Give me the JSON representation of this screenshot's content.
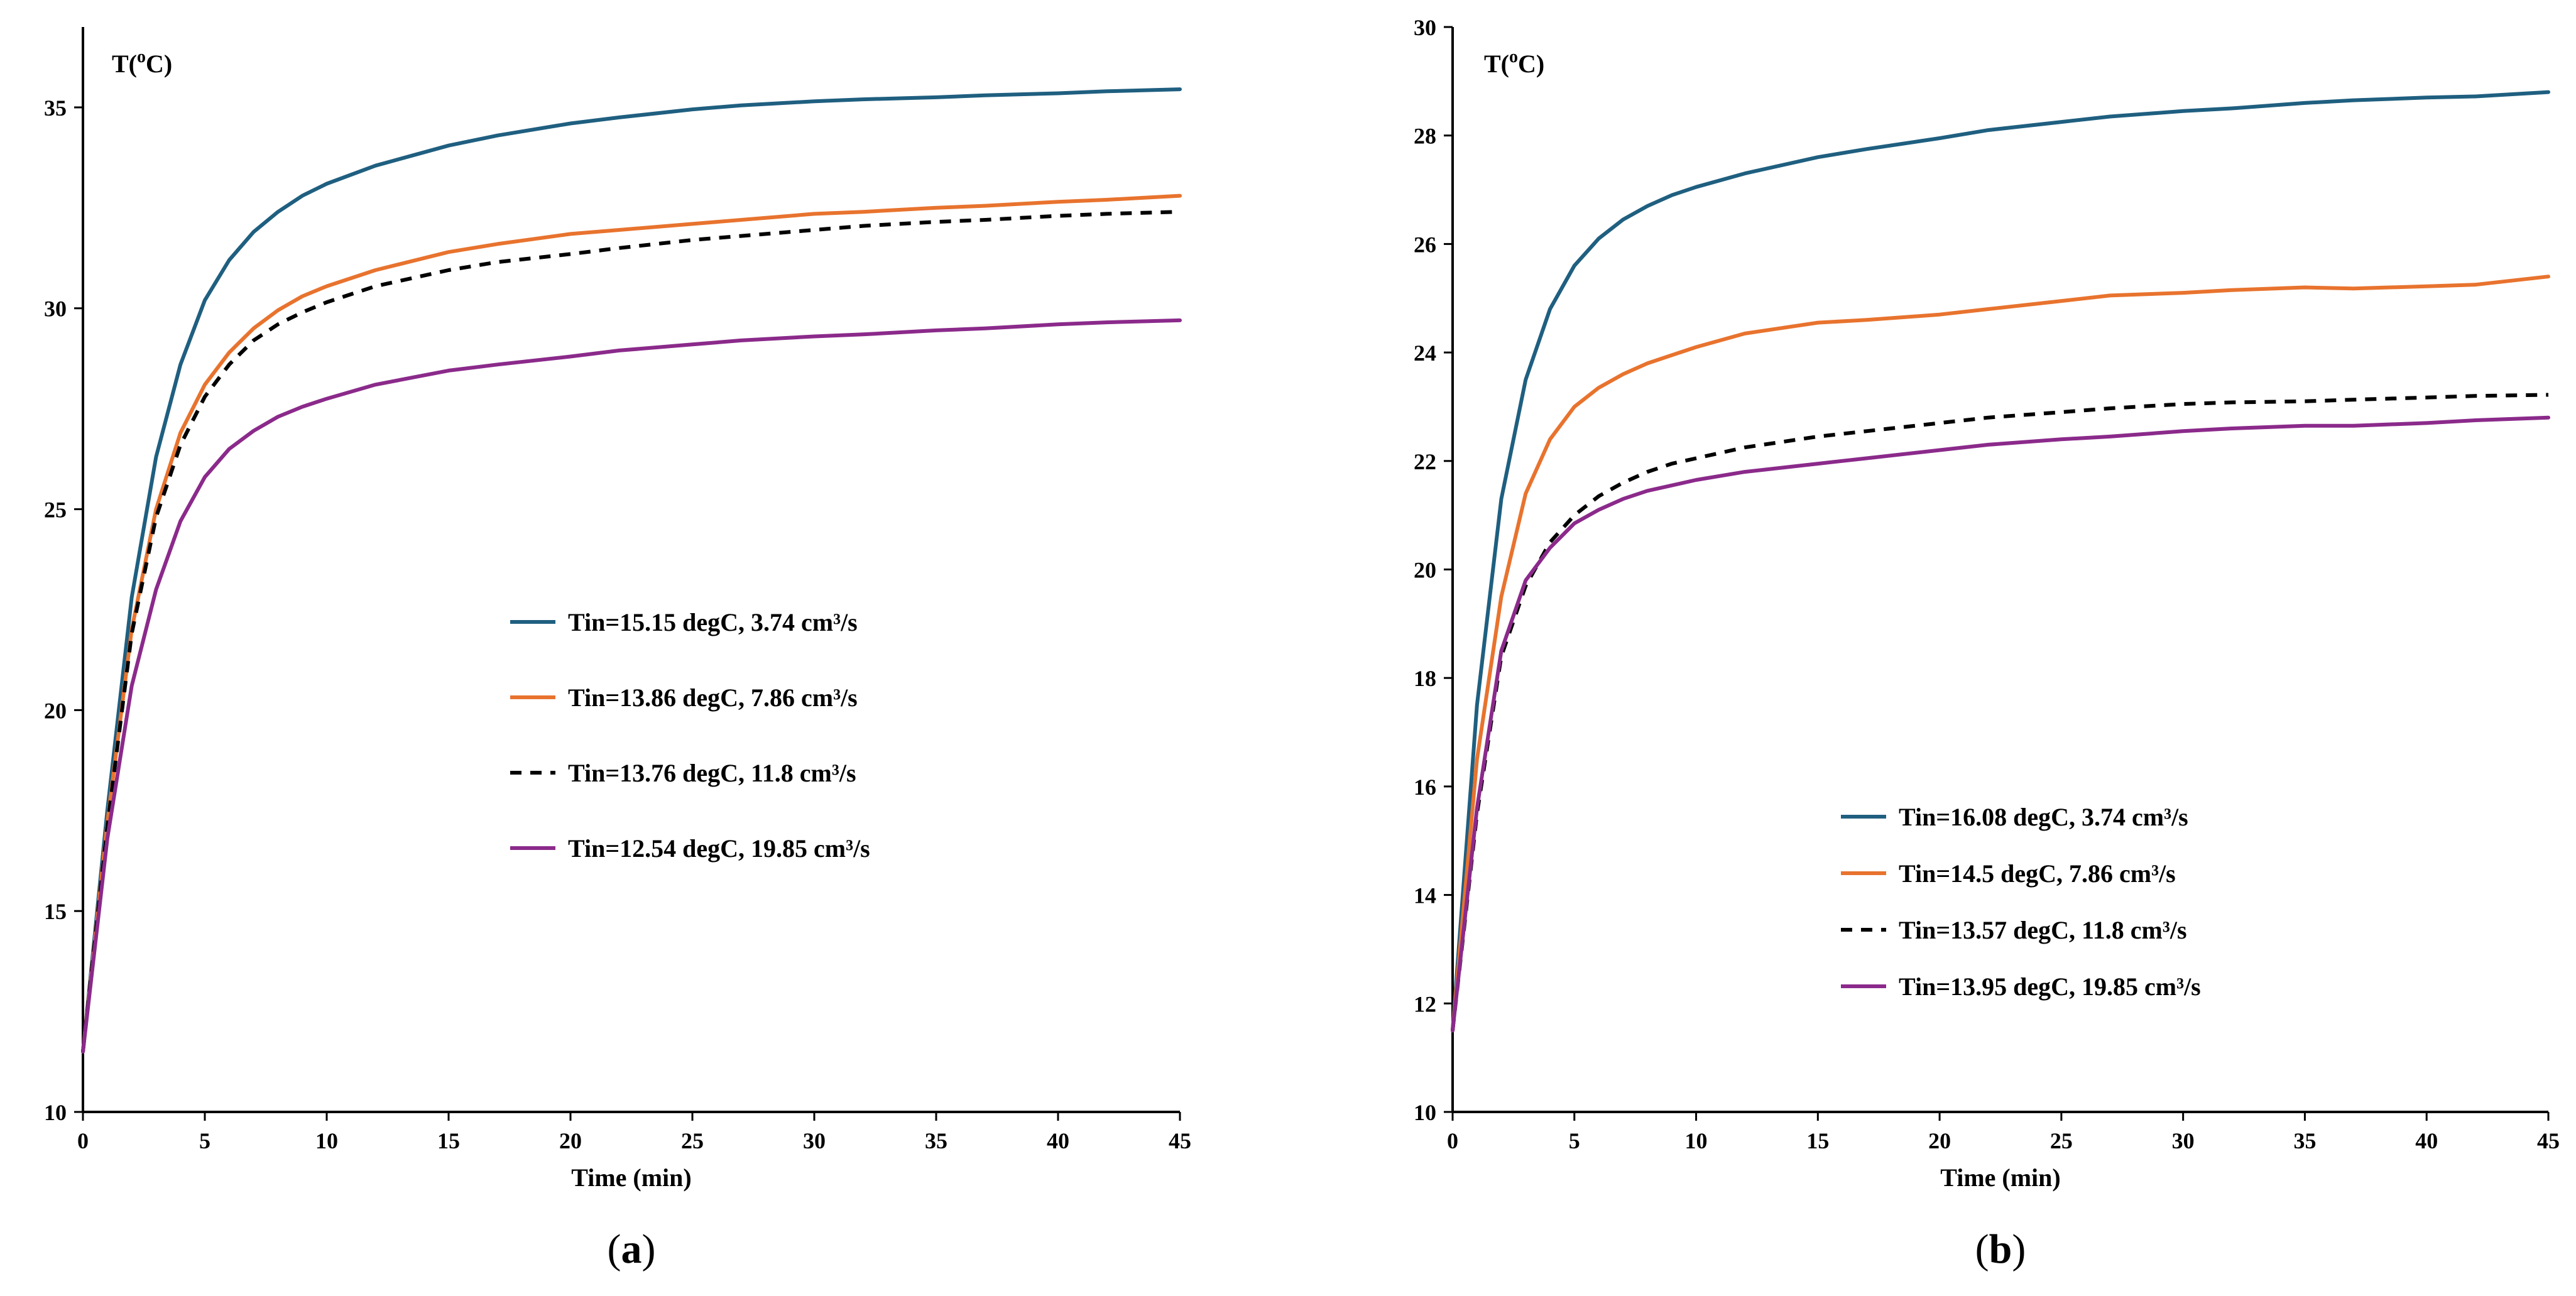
{
  "chart_data": [
    {
      "type": "line",
      "panel_label": "(a)",
      "xlabel": "Time (min)",
      "ylabel": "T(oC)",
      "xlim": [
        0,
        45
      ],
      "ylim": [
        10,
        37
      ],
      "xticks": [
        0,
        5,
        10,
        15,
        20,
        25,
        30,
        35,
        40,
        45
      ],
      "yticks": [
        10,
        15,
        20,
        25,
        30,
        35
      ],
      "grid": false,
      "legend_position": "center-right",
      "x": [
        0,
        1,
        2,
        3,
        4,
        5,
        6,
        7,
        8,
        9,
        10,
        12,
        15,
        17,
        20,
        22,
        25,
        27,
        30,
        32,
        35,
        37,
        40,
        42,
        45
      ],
      "series": [
        {
          "name": "Tin=15.15 degC, 3.74 cm³/s",
          "color": "#1f5f80",
          "dash": false,
          "values": [
            11.5,
            17.5,
            22.8,
            26.3,
            28.6,
            30.2,
            31.2,
            31.9,
            32.4,
            32.8,
            33.1,
            33.55,
            34.05,
            34.3,
            34.6,
            34.75,
            34.95,
            35.05,
            35.15,
            35.2,
            35.25,
            35.3,
            35.35,
            35.4,
            35.45
          ]
        },
        {
          "name": "Tin=13.86 degC, 7.86 cm³/s",
          "color": "#e8732e",
          "dash": false,
          "values": [
            11.5,
            17.2,
            22.0,
            25.0,
            26.9,
            28.1,
            28.9,
            29.5,
            29.95,
            30.3,
            30.55,
            30.95,
            31.4,
            31.6,
            31.85,
            31.95,
            32.1,
            32.2,
            32.35,
            32.4,
            32.5,
            32.55,
            32.65,
            32.7,
            32.8
          ]
        },
        {
          "name": "Tin=13.76 degC, 11.8 cm³/s",
          "color": "#000000",
          "dash": true,
          "values": [
            11.5,
            17.1,
            21.9,
            24.8,
            26.6,
            27.8,
            28.6,
            29.2,
            29.6,
            29.9,
            30.15,
            30.55,
            30.95,
            31.15,
            31.35,
            31.5,
            31.7,
            31.8,
            31.95,
            32.05,
            32.15,
            32.2,
            32.3,
            32.35,
            32.4
          ]
        },
        {
          "name": "Tin=12.54 degC, 19.85 cm³/s",
          "color": "#8b2a8b",
          "dash": false,
          "values": [
            11.5,
            16.8,
            20.6,
            23.0,
            24.7,
            25.8,
            26.5,
            26.95,
            27.3,
            27.55,
            27.75,
            28.1,
            28.45,
            28.6,
            28.8,
            28.95,
            29.1,
            29.2,
            29.3,
            29.35,
            29.45,
            29.5,
            29.6,
            29.65,
            29.7
          ]
        }
      ]
    },
    {
      "type": "line",
      "panel_label": "(b)",
      "xlabel": "Time (min)",
      "ylabel": "T(oC)",
      "xlim": [
        0,
        45
      ],
      "ylim": [
        10,
        30
      ],
      "xticks": [
        0,
        5,
        10,
        15,
        20,
        25,
        30,
        35,
        40,
        45
      ],
      "yticks": [
        10,
        12,
        14,
        16,
        18,
        20,
        22,
        24,
        26,
        28,
        30
      ],
      "grid": false,
      "legend_position": "bottom-right",
      "x": [
        0,
        1,
        2,
        3,
        4,
        5,
        6,
        7,
        8,
        9,
        10,
        12,
        15,
        17,
        20,
        22,
        25,
        27,
        30,
        32,
        35,
        37,
        40,
        42,
        45
      ],
      "series": [
        {
          "name": "Tin=16.08 degC, 3.74 cm³/s",
          "color": "#1f5f80",
          "dash": false,
          "values": [
            11.5,
            17.5,
            21.3,
            23.5,
            24.8,
            25.6,
            26.1,
            26.45,
            26.7,
            26.9,
            27.05,
            27.3,
            27.6,
            27.75,
            27.95,
            28.1,
            28.25,
            28.35,
            28.45,
            28.5,
            28.6,
            28.65,
            28.7,
            28.72,
            28.8
          ]
        },
        {
          "name": "Tin=14.5 degC, 7.86 cm³/s",
          "color": "#e8732e",
          "dash": false,
          "values": [
            11.5,
            16.5,
            19.5,
            21.4,
            22.4,
            23.0,
            23.35,
            23.6,
            23.8,
            23.95,
            24.1,
            24.35,
            24.55,
            24.6,
            24.7,
            24.8,
            24.95,
            25.05,
            25.1,
            25.15,
            25.2,
            25.18,
            25.22,
            25.25,
            25.4
          ]
        },
        {
          "name": "Tin=13.57 degC, 11.8 cm³/s",
          "color": "#000000",
          "dash": true,
          "values": [
            11.5,
            15.5,
            18.4,
            19.7,
            20.5,
            21.0,
            21.35,
            21.6,
            21.8,
            21.95,
            22.05,
            22.25,
            22.45,
            22.55,
            22.7,
            22.8,
            22.9,
            22.97,
            23.05,
            23.08,
            23.1,
            23.13,
            23.17,
            23.2,
            23.22
          ]
        },
        {
          "name": "Tin=13.95 degC, 19.85 cm³/s",
          "color": "#8b2a8b",
          "dash": false,
          "values": [
            11.5,
            15.6,
            18.5,
            19.8,
            20.4,
            20.85,
            21.1,
            21.3,
            21.45,
            21.55,
            21.65,
            21.8,
            21.95,
            22.05,
            22.2,
            22.3,
            22.4,
            22.45,
            22.55,
            22.6,
            22.65,
            22.65,
            22.7,
            22.75,
            22.8
          ]
        }
      ]
    }
  ]
}
